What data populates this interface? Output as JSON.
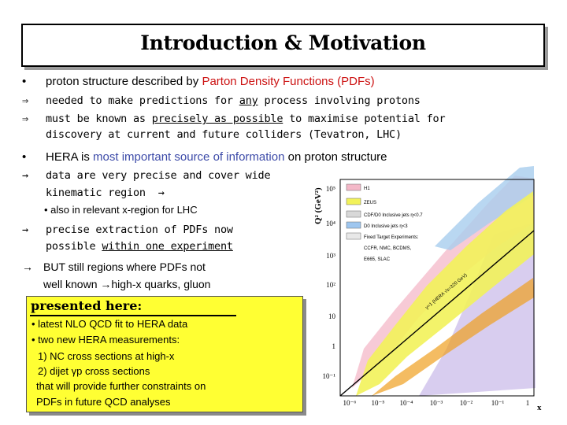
{
  "title": "Introduction & Motivation",
  "bullets": {
    "b1": {
      "mark": "•",
      "pre": "proton structure described by ",
      "highlight": "Parton Density Functions (PDFs)"
    },
    "b2": {
      "mark": "⇒",
      "pre": "needed to make predictions for ",
      "underline": "any",
      "post": " process involving protons"
    },
    "b3": {
      "mark": "⇒",
      "pre": "must be known as ",
      "underline": "precisely as possible",
      "post": " to maximise potential for",
      "line2": "discovery at current and future colliders (Tevatron, LHC)"
    },
    "b4": {
      "mark": "•",
      "pre": "HERA is ",
      "highlight": "most important source of information",
      "post": " on proton structure"
    },
    "b5": {
      "mark": "→",
      "line1": "data are very precise and cover wide",
      "line2": "kinematic region",
      "arrow": "→"
    },
    "b5sub": "• also in relevant x-region for LHC",
    "b6": {
      "mark": "→",
      "line1": "precise extraction of PDFs now",
      "line2_pre": "possible ",
      "line2_underline": "within one experiment"
    },
    "b7": {
      "mark": "→",
      "line1": "BUT still regions where PDFs not",
      "line2_pre": "well known ",
      "arrow": "→",
      "line2_post": "high-x quarks, gluon"
    }
  },
  "presented": {
    "heading": "presented here:",
    "items": [
      "• latest NLO QCD fit to HERA data",
      "• two new HERA measurements:",
      "1) NC cross sections at high-x",
      "2) dijet γp cross sections",
      "that will provide further constraints on",
      "PDFs in future QCD analyses"
    ]
  },
  "plot": {
    "y_axis_label": "Q² (GeV²)",
    "x_axis_label": "x",
    "y_ticks": [
      "10⁵",
      "10⁴",
      "10³",
      "10²",
      "10",
      "1",
      "10⁻¹"
    ],
    "x_ticks": [
      "10⁻⁶",
      "10⁻⁵",
      "10⁻⁴",
      "10⁻³",
      "10⁻²",
      "10⁻¹",
      "1"
    ],
    "diagonal_label": "y=1 (HERA √s=320 GeV)",
    "legend": [
      {
        "label": "H1",
        "color": "#f4b8c8"
      },
      {
        "label": "ZEUS",
        "color": "#f2f25a"
      },
      {
        "label": "CDF/D0 Inclusive jets η<0.7",
        "color": "#d8d8d8"
      },
      {
        "label": "D0 Inclusive jets η<3",
        "color": "#9ec6ef"
      },
      {
        "label": "Fixed Target Experiments:",
        "color": "#e8e8e8"
      },
      {
        "label": "CCFR, NMC, BCDMS,",
        "color": ""
      },
      {
        "label": "E665, SLAC",
        "color": ""
      }
    ],
    "colors": {
      "h1": "#f4b8c8",
      "zeus": "#f2f25a",
      "fixed": "#c0b0e0",
      "tev": "#a8cdee",
      "orange": "#f0a020"
    }
  }
}
